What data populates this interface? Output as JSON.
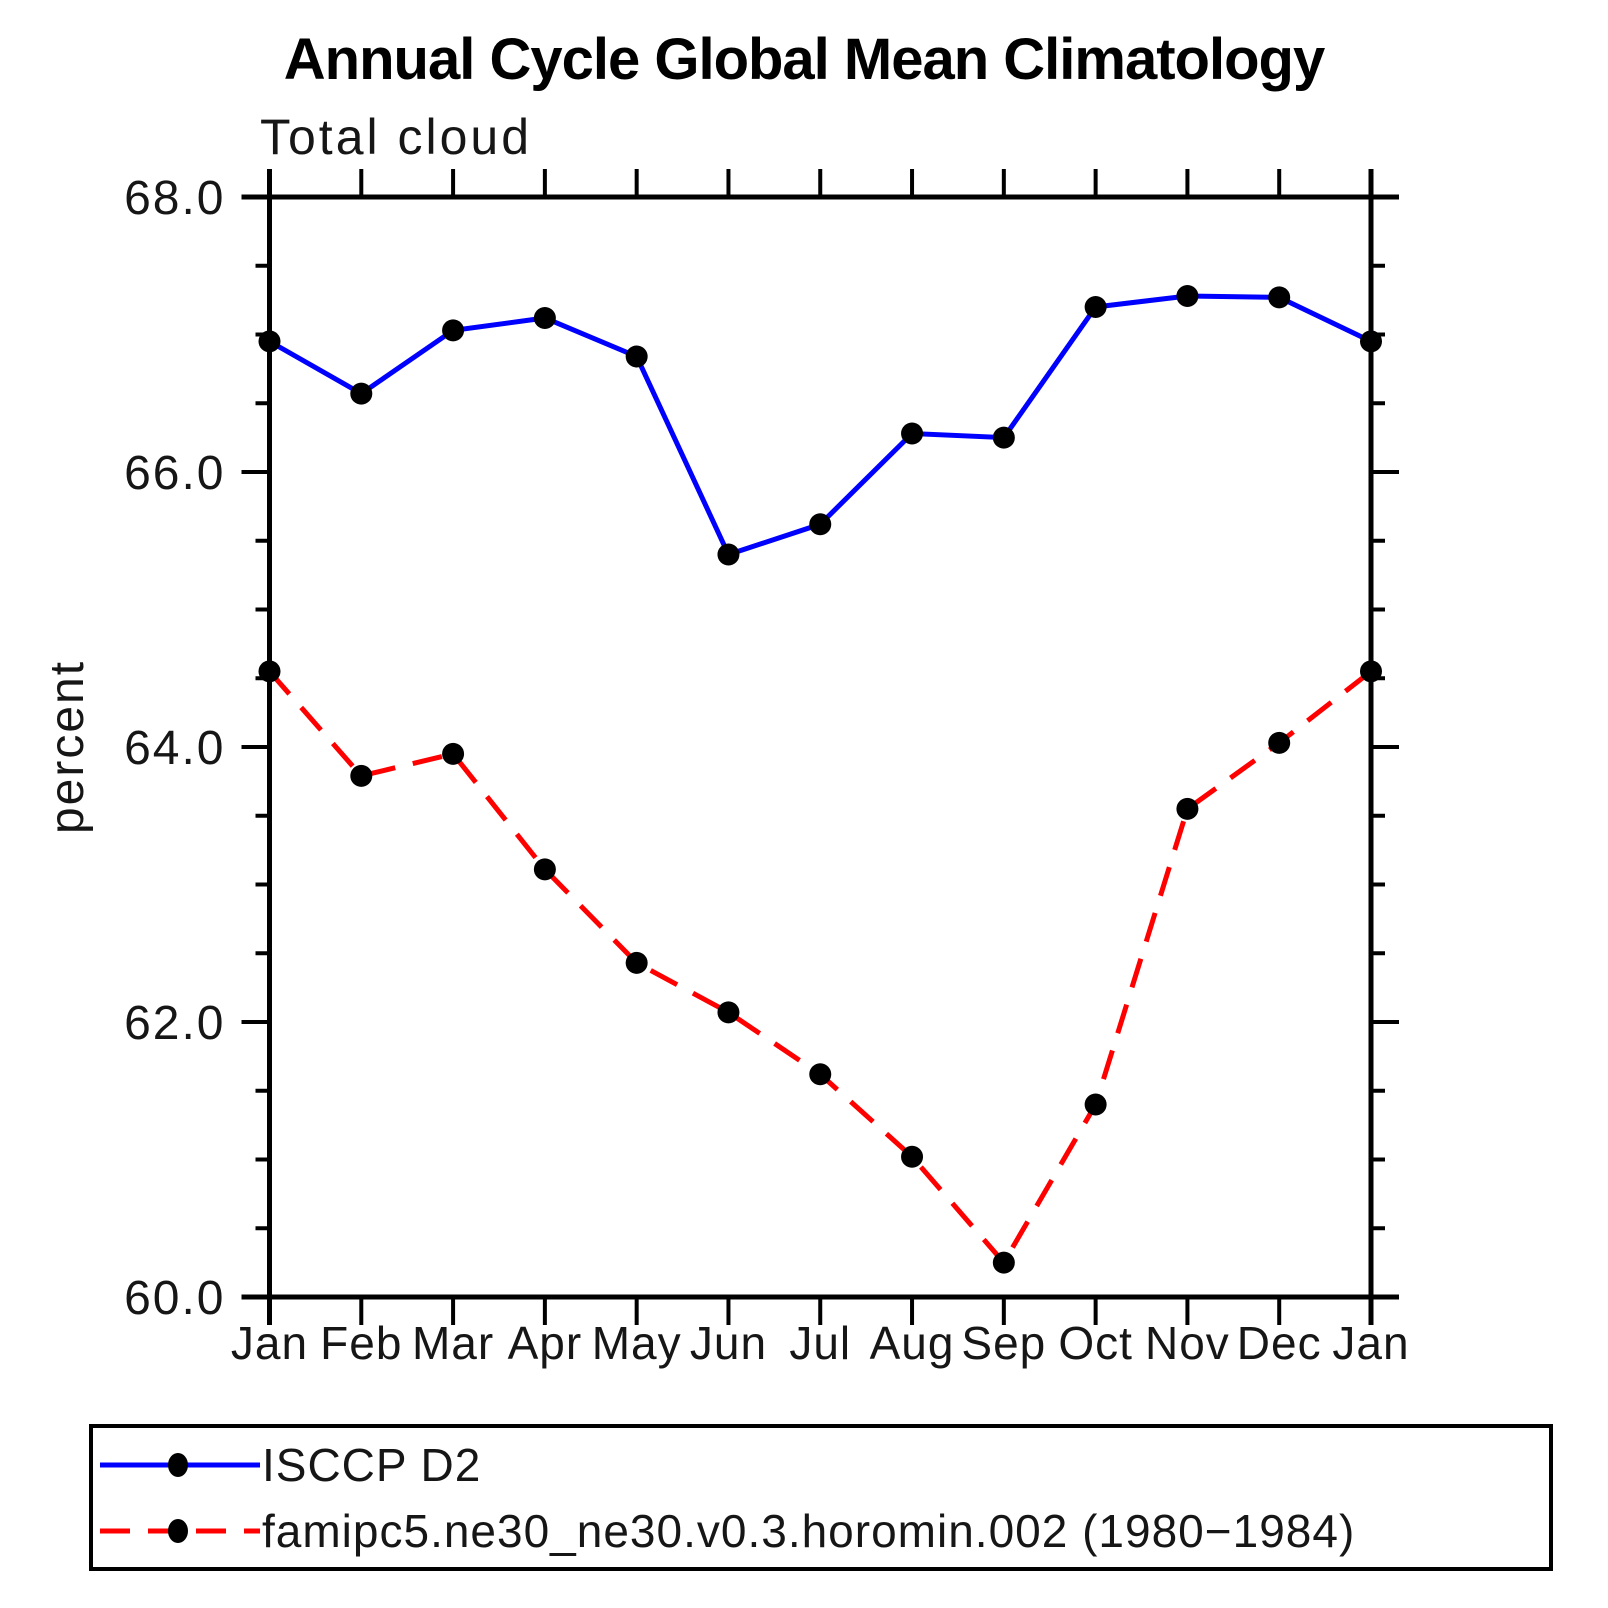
{
  "chart_data": {
    "type": "line",
    "title": "Annual Cycle Global Mean Climatology",
    "subtitle": "Total cloud",
    "xlabel": "",
    "ylabel": "percent",
    "categories": [
      "Jan",
      "Feb",
      "Mar",
      "Apr",
      "May",
      "Jun",
      "Jul",
      "Aug",
      "Sep",
      "Oct",
      "Nov",
      "Dec",
      "Jan"
    ],
    "series": [
      {
        "name": "ISCCP D2",
        "color": "#0000ff",
        "style": "solid",
        "marker": "circle",
        "values": [
          66.95,
          66.57,
          67.03,
          67.12,
          66.84,
          65.4,
          65.62,
          66.28,
          66.25,
          67.2,
          67.28,
          67.27,
          66.95
        ]
      },
      {
        "name": "famipc5.ne30_ne30.v0.3.horomin.002 (1980−1984)",
        "color": "#ff0000",
        "style": "dashed",
        "marker": "circle",
        "values": [
          64.55,
          63.79,
          63.95,
          63.11,
          62.43,
          62.07,
          61.62,
          61.02,
          60.25,
          61.4,
          63.55,
          64.03,
          64.55
        ]
      }
    ],
    "marker_color": "#000000",
    "axis_color": "#000000",
    "ylim": [
      60,
      68
    ],
    "ytick_values": [
      68,
      66,
      64,
      62,
      60
    ],
    "ytick_labels": [
      "68.0",
      "66.0",
      "64.0",
      "62.0",
      "60.0"
    ],
    "yminor_step": 0.5,
    "grid": false,
    "legend_position": "bottom"
  }
}
